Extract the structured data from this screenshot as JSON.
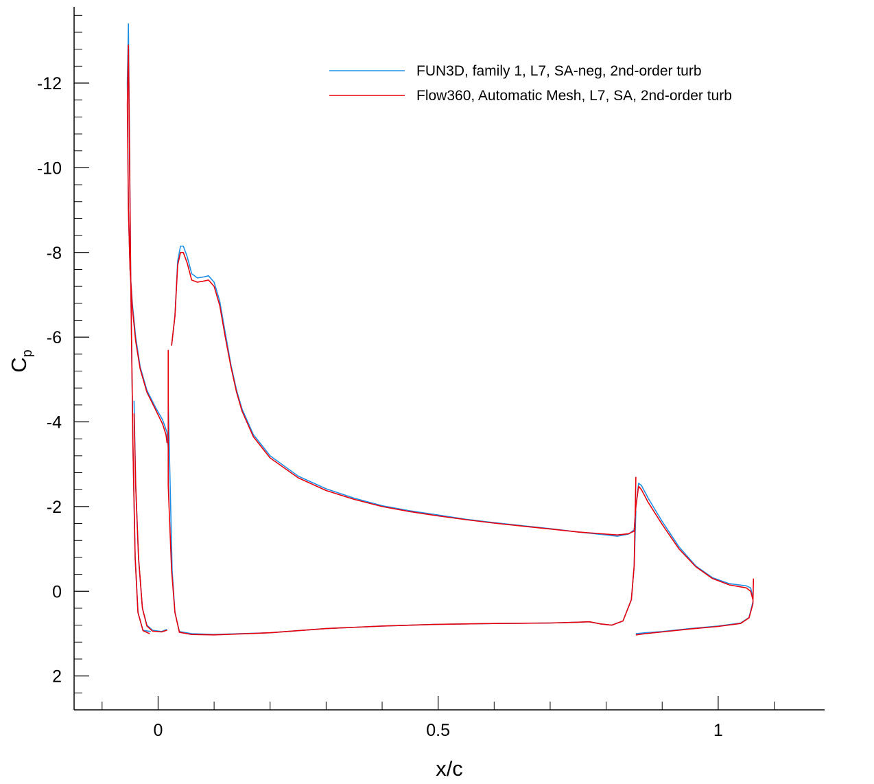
{
  "chart_data": {
    "type": "line",
    "xlabel": "x/c",
    "ylabel": {
      "main": "C",
      "sub": "p"
    },
    "xlim": [
      -0.15,
      1.19
    ],
    "ylim": [
      2.8,
      -13.8
    ],
    "y_inverted": true,
    "grid": false,
    "legend_position": "top-right",
    "x_ticks": [
      {
        "value": 0,
        "label": "0"
      },
      {
        "value": 0.5,
        "label": "0.5"
      },
      {
        "value": 1,
        "label": "1"
      }
    ],
    "y_ticks": [
      {
        "value": -12,
        "label": "-12"
      },
      {
        "value": -10,
        "label": "-10"
      },
      {
        "value": -8,
        "label": "-8"
      },
      {
        "value": -6,
        "label": "-6"
      },
      {
        "value": -4,
        "label": "-4"
      },
      {
        "value": -2,
        "label": "-2"
      },
      {
        "value": 0,
        "label": "0"
      },
      {
        "value": 2,
        "label": "2"
      }
    ],
    "series": [
      {
        "name": "FUN3D, family 1, L7, SA-neg, 2nd-order turb",
        "color": "#1f8fe6",
        "segments": [
          [
            [
              -0.013,
              0.95
            ],
            [
              -0.027,
              0.92
            ],
            [
              -0.036,
              0.5
            ],
            [
              -0.041,
              -0.8
            ],
            [
              -0.045,
              -3.5
            ],
            [
              -0.049,
              -7.5
            ],
            [
              -0.053,
              -13.4
            ],
            [
              -0.055,
              -12.0
            ],
            [
              -0.053,
              -9.0
            ],
            [
              -0.05,
              -7.6
            ],
            [
              -0.046,
              -6.8
            ],
            [
              -0.04,
              -6.0
            ],
            [
              -0.032,
              -5.3
            ],
            [
              -0.02,
              -4.75
            ],
            [
              -0.005,
              -4.35
            ],
            [
              0.008,
              -4.05
            ],
            [
              0.016,
              -3.75
            ],
            [
              0.018,
              -3.4
            ]
          ],
          [
            [
              0.016,
              0.9
            ],
            [
              0.006,
              0.95
            ],
            [
              -0.01,
              0.92
            ],
            [
              -0.02,
              0.8
            ],
            [
              -0.028,
              0.4
            ],
            [
              -0.035,
              -0.8
            ],
            [
              -0.04,
              -2.5
            ],
            [
              -0.043,
              -4.5
            ]
          ],
          [
            [
              0.018,
              -4.5
            ],
            [
              0.025,
              -0.5
            ],
            [
              0.03,
              0.5
            ],
            [
              0.038,
              0.95
            ],
            [
              0.06,
              1.0
            ],
            [
              0.1,
              1.02
            ],
            [
              0.2,
              0.98
            ],
            [
              0.3,
              0.88
            ],
            [
              0.4,
              0.82
            ],
            [
              0.5,
              0.78
            ],
            [
              0.6,
              0.76
            ],
            [
              0.7,
              0.75
            ],
            [
              0.75,
              0.73
            ],
            [
              0.77,
              0.72
            ],
            [
              0.79,
              0.77
            ],
            [
              0.81,
              0.8
            ],
            [
              0.83,
              0.7
            ],
            [
              0.845,
              0.2
            ],
            [
              0.85,
              -0.6
            ],
            [
              0.853,
              -1.9
            ]
          ],
          [
            [
              0.024,
              -5.8
            ],
            [
              0.03,
              -6.5
            ],
            [
              0.035,
              -7.8
            ],
            [
              0.04,
              -8.15
            ],
            [
              0.045,
              -8.15
            ],
            [
              0.052,
              -7.9
            ],
            [
              0.06,
              -7.5
            ],
            [
              0.07,
              -7.4
            ],
            [
              0.08,
              -7.42
            ],
            [
              0.09,
              -7.45
            ],
            [
              0.1,
              -7.3
            ],
            [
              0.11,
              -6.85
            ],
            [
              0.12,
              -6.1
            ],
            [
              0.13,
              -5.35
            ],
            [
              0.14,
              -4.75
            ],
            [
              0.15,
              -4.3
            ],
            [
              0.17,
              -3.7
            ],
            [
              0.2,
              -3.2
            ],
            [
              0.25,
              -2.72
            ],
            [
              0.3,
              -2.42
            ],
            [
              0.35,
              -2.2
            ],
            [
              0.4,
              -2.02
            ],
            [
              0.45,
              -1.9
            ],
            [
              0.5,
              -1.8
            ],
            [
              0.55,
              -1.7
            ],
            [
              0.6,
              -1.62
            ],
            [
              0.65,
              -1.55
            ],
            [
              0.7,
              -1.48
            ],
            [
              0.75,
              -1.4
            ],
            [
              0.8,
              -1.33
            ],
            [
              0.82,
              -1.3
            ],
            [
              0.84,
              -1.35
            ],
            [
              0.85,
              -1.45
            ],
            [
              0.853,
              -2.0
            ],
            [
              0.858,
              -2.55
            ],
            [
              0.863,
              -2.5
            ],
            [
              0.875,
              -2.2
            ],
            [
              0.9,
              -1.65
            ],
            [
              0.93,
              -1.05
            ],
            [
              0.96,
              -0.6
            ],
            [
              0.99,
              -0.32
            ],
            [
              1.02,
              -0.18
            ],
            [
              1.05,
              -0.13
            ],
            [
              1.058,
              -0.08
            ],
            [
              1.062,
              0.15
            ]
          ],
          [
            [
              0.853,
              1.0
            ],
            [
              0.87,
              0.98
            ],
            [
              0.9,
              0.95
            ],
            [
              0.95,
              0.88
            ],
            [
              1.0,
              0.82
            ],
            [
              1.04,
              0.75
            ],
            [
              1.055,
              0.62
            ],
            [
              1.062,
              0.25
            ]
          ]
        ]
      },
      {
        "name": "Flow360, Automatic Mesh, L7, SA, 2nd-order turb",
        "color": "#e8000b",
        "segments": [
          [
            [
              -0.015,
              1.0
            ],
            [
              -0.027,
              0.93
            ],
            [
              -0.036,
              0.5
            ],
            [
              -0.041,
              -0.8
            ],
            [
              -0.045,
              -3.5
            ],
            [
              -0.049,
              -7.5
            ],
            [
              -0.053,
              -12.9
            ],
            [
              -0.055,
              -11.5
            ],
            [
              -0.053,
              -9.0
            ],
            [
              -0.05,
              -7.6
            ],
            [
              -0.046,
              -6.7
            ],
            [
              -0.04,
              -5.9
            ],
            [
              -0.032,
              -5.25
            ],
            [
              -0.02,
              -4.7
            ],
            [
              -0.005,
              -4.3
            ],
            [
              0.008,
              -3.95
            ],
            [
              0.014,
              -3.7
            ],
            [
              0.016,
              -3.5
            ]
          ],
          [
            [
              0.016,
              0.92
            ],
            [
              0.006,
              0.96
            ],
            [
              -0.01,
              0.94
            ],
            [
              -0.02,
              0.82
            ],
            [
              -0.028,
              0.4
            ],
            [
              -0.035,
              -0.8
            ],
            [
              -0.04,
              -2.5
            ],
            [
              -0.043,
              -4.2
            ]
          ],
          [
            [
              0.018,
              -5.7
            ],
            [
              0.018,
              -2.5
            ],
            [
              0.024,
              -0.5
            ],
            [
              0.03,
              0.5
            ],
            [
              0.038,
              0.97
            ],
            [
              0.06,
              1.02
            ],
            [
              0.1,
              1.03
            ],
            [
              0.2,
              0.98
            ],
            [
              0.3,
              0.88
            ],
            [
              0.4,
              0.82
            ],
            [
              0.5,
              0.78
            ],
            [
              0.6,
              0.76
            ],
            [
              0.7,
              0.75
            ],
            [
              0.75,
              0.73
            ],
            [
              0.77,
              0.72
            ],
            [
              0.79,
              0.77
            ],
            [
              0.81,
              0.8
            ],
            [
              0.83,
              0.7
            ],
            [
              0.845,
              0.2
            ],
            [
              0.85,
              -0.6
            ],
            [
              0.853,
              -2.7
            ]
          ],
          [
            [
              0.024,
              -5.8
            ],
            [
              0.03,
              -6.5
            ],
            [
              0.035,
              -7.7
            ],
            [
              0.04,
              -8.0
            ],
            [
              0.045,
              -8.0
            ],
            [
              0.052,
              -7.75
            ],
            [
              0.06,
              -7.35
            ],
            [
              0.07,
              -7.3
            ],
            [
              0.08,
              -7.32
            ],
            [
              0.09,
              -7.35
            ],
            [
              0.1,
              -7.2
            ],
            [
              0.11,
              -6.75
            ],
            [
              0.12,
              -6.0
            ],
            [
              0.13,
              -5.3
            ],
            [
              0.14,
              -4.7
            ],
            [
              0.15,
              -4.25
            ],
            [
              0.17,
              -3.65
            ],
            [
              0.2,
              -3.15
            ],
            [
              0.25,
              -2.68
            ],
            [
              0.3,
              -2.38
            ],
            [
              0.35,
              -2.17
            ],
            [
              0.4,
              -2.0
            ],
            [
              0.45,
              -1.88
            ],
            [
              0.5,
              -1.78
            ],
            [
              0.55,
              -1.69
            ],
            [
              0.6,
              -1.61
            ],
            [
              0.65,
              -1.54
            ],
            [
              0.7,
              -1.47
            ],
            [
              0.75,
              -1.4
            ],
            [
              0.8,
              -1.35
            ],
            [
              0.82,
              -1.33
            ],
            [
              0.84,
              -1.36
            ],
            [
              0.85,
              -1.42
            ],
            [
              0.853,
              -2.0
            ],
            [
              0.858,
              -2.48
            ],
            [
              0.863,
              -2.4
            ],
            [
              0.875,
              -2.1
            ],
            [
              0.9,
              -1.58
            ],
            [
              0.93,
              -1.0
            ],
            [
              0.96,
              -0.58
            ],
            [
              0.99,
              -0.3
            ],
            [
              1.02,
              -0.15
            ],
            [
              1.05,
              -0.08
            ],
            [
              1.058,
              0.0
            ],
            [
              1.062,
              0.2
            ]
          ],
          [
            [
              0.853,
              1.03
            ],
            [
              0.87,
              1.0
            ],
            [
              0.9,
              0.96
            ],
            [
              0.95,
              0.89
            ],
            [
              1.0,
              0.83
            ],
            [
              1.04,
              0.76
            ],
            [
              1.055,
              0.63
            ],
            [
              1.062,
              0.3
            ],
            [
              1.063,
              -0.3
            ]
          ]
        ]
      }
    ]
  }
}
